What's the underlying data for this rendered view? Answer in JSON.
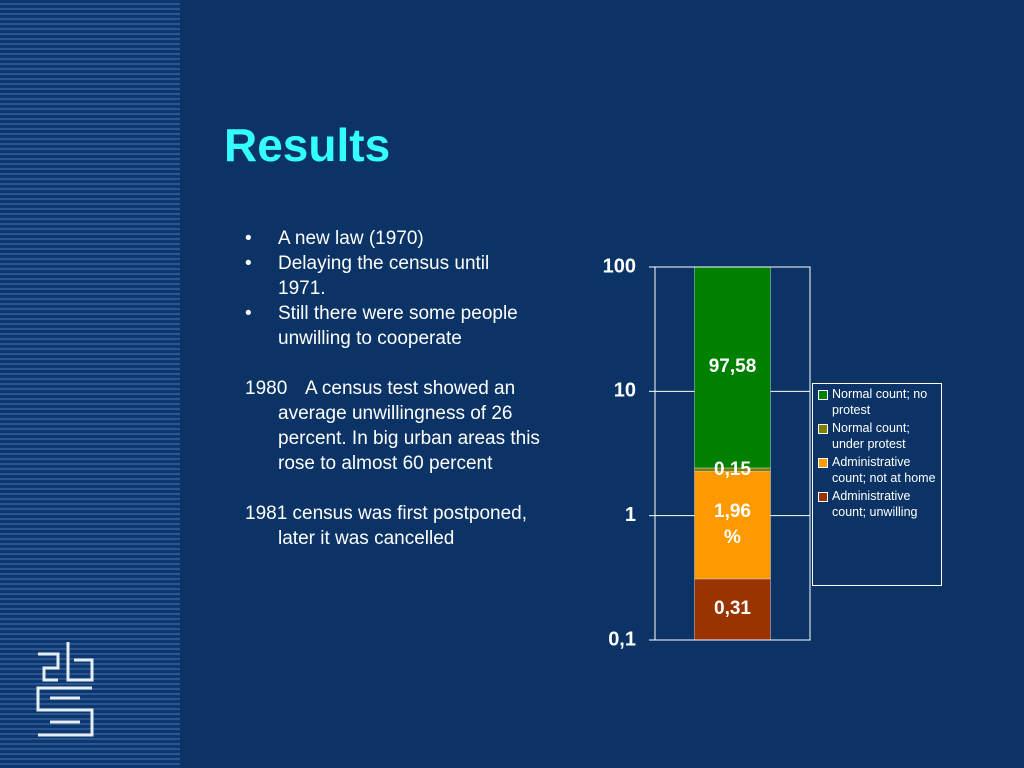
{
  "slide": {
    "title": "Results",
    "bullets": [
      "A new law (1970)",
      "Delaying the census until 1971.",
      "Still there were some people unwilling to cooperate"
    ],
    "paragraphs": [
      {
        "label": "1980",
        "text": "A census test showed an average unwillingness of 26 percent. In big urban areas this rose to almost 60 percent"
      },
      {
        "text": "1981 census was first postponed, later it was cancelled"
      }
    ]
  },
  "chart_data": {
    "type": "stacked-bar",
    "categories": [
      null
    ],
    "ylim": [
      0.1,
      100
    ],
    "ylog": true,
    "yticks": [
      {
        "value": 0.1,
        "label": "0,1"
      },
      1,
      10,
      100
    ],
    "grid": true,
    "legend": "right",
    "series": [
      {
        "name": "Administrative count; unwilling",
        "color": "#993300",
        "values": [
          0.31
        ],
        "value_labels": [
          "0,31"
        ]
      },
      {
        "name": "Administrative count; not at home",
        "color": "#ff9900",
        "values": [
          1.96
        ],
        "value_labels": [
          "1,96 %"
        ]
      },
      {
        "name": "Normal count; under protest",
        "color": "#808000",
        "values": [
          0.15
        ],
        "value_labels": [
          "0,15"
        ]
      },
      {
        "name": "Normal count; no protest",
        "color": "#008000",
        "values": [
          97.58
        ],
        "value_labels": [
          "97,58"
        ]
      }
    ]
  }
}
